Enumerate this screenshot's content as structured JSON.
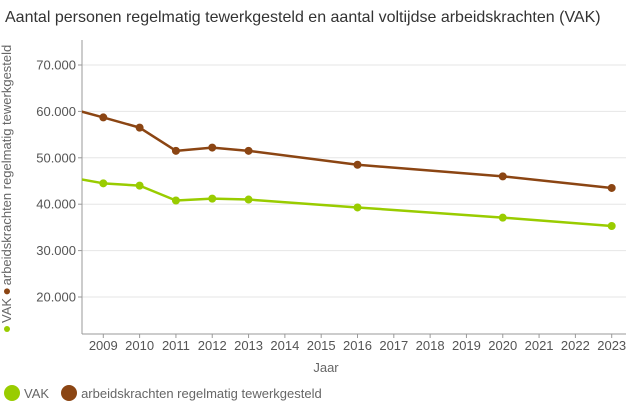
{
  "chart_data": {
    "type": "line",
    "title": "Aantal personen regelmatig tewerkgesteld en aantal voltijdse arbeidskrachten (VAK)",
    "xlabel": "Jaar",
    "ylabel_legend": [
      {
        "name": "VAK",
        "color": "#99cc00"
      },
      {
        "name": "arbeidskrachten regelmatig tewerkgesteld",
        "color": "#8b4513"
      }
    ],
    "x_ticks": [
      "2009",
      "2010",
      "2011",
      "2012",
      "2013",
      "2014",
      "2015",
      "2016",
      "2017",
      "2018",
      "2019",
      "2020",
      "2021",
      "2022",
      "2023"
    ],
    "xlim": [
      2008.6,
      2023.4
    ],
    "y_ticks": [
      "20.000",
      "30.000",
      "40.000",
      "50.000",
      "60.000",
      "70.000"
    ],
    "y_tick_values": [
      20000,
      30000,
      40000,
      50000,
      60000,
      70000
    ],
    "ylim": [
      12500,
      75000
    ],
    "grid": true,
    "legend_position": "bottom-left",
    "series": [
      {
        "name": "VAK",
        "color": "#99cc00",
        "x": [
          2008,
          2009,
          2010,
          2011,
          2012,
          2013,
          2016,
          2020,
          2023
        ],
        "values": [
          45900,
          44500,
          44000,
          40800,
          41200,
          41000,
          39300,
          37100,
          35300
        ]
      },
      {
        "name": "arbeidskrachten regelmatig tewerkgesteld",
        "color": "#8b4513",
        "x": [
          2008,
          2009,
          2010,
          2011,
          2012,
          2013,
          2016,
          2020,
          2023
        ],
        "values": [
          60800,
          58700,
          56500,
          51500,
          52200,
          51500,
          48500,
          46000,
          43500
        ]
      }
    ]
  },
  "legend": {
    "items": [
      {
        "label": "VAK",
        "color": "#99cc00"
      },
      {
        "label": "arbeidskrachten regelmatig tewerkgesteld",
        "color": "#8b4513"
      }
    ]
  }
}
